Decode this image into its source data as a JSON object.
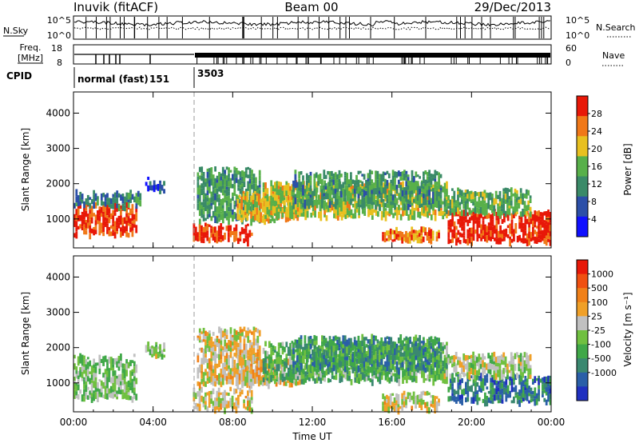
{
  "header": {
    "station": "Inuvik (fitACF)",
    "beam": "Beam 00",
    "date": "29/Dec/2013"
  },
  "noise_panel": {
    "left_label": "N.Sky",
    "right_label": "N.Search",
    "left_ticks": [
      "10^5",
      "10^0"
    ],
    "right_ticks": [
      "10^5",
      "10^0"
    ]
  },
  "freq_panel": {
    "left_label_line1": "Freq.",
    "left_label_line2": "[MHz]",
    "right_label": "Nave",
    "left_ticks": [
      "18",
      "8"
    ],
    "right_ticks": [
      "60",
      "0"
    ]
  },
  "cpid": {
    "label": "CPID",
    "modes": [
      {
        "name": "normal (fast)",
        "id": "151",
        "start_hour": 0,
        "end_hour": 6
      },
      {
        "name": "",
        "id": "3503",
        "start_hour": 6,
        "end_hour": 24
      }
    ]
  },
  "chart_data": [
    {
      "type": "heatmap",
      "name": "power",
      "xlabel": "",
      "ylabel": "Slant Range [km]",
      "xlim": [
        0,
        24
      ],
      "ylim": [
        180,
        4600
      ],
      "yticks": [
        "1000",
        "2000",
        "3000",
        "4000"
      ],
      "colorbar": {
        "label": "Power [dB]",
        "tick_labels": [
          "4",
          "8",
          "12",
          "16",
          "20",
          "24",
          "28"
        ],
        "range": [
          0,
          30
        ],
        "colors": [
          "#1010ff",
          "#2c4fa8",
          "#3a8a68",
          "#58b04a",
          "#e8c020",
          "#f07818",
          "#e81808"
        ]
      },
      "echo_regions": [
        {
          "t0": 0.0,
          "t1": 3.2,
          "r0": 600,
          "r1": 1500,
          "value": 26
        },
        {
          "t0": 0.0,
          "t1": 3.4,
          "r0": 1400,
          "r1": 1850,
          "value": 10
        },
        {
          "t0": 3.6,
          "t1": 4.6,
          "r0": 1800,
          "r1": 2200,
          "value": 6
        },
        {
          "t0": 6.0,
          "t1": 9.0,
          "r0": 400,
          "r1": 900,
          "value": 27
        },
        {
          "t0": 6.2,
          "t1": 9.4,
          "r0": 1000,
          "r1": 2500,
          "value": 12
        },
        {
          "t0": 8.2,
          "t1": 11.5,
          "r0": 1000,
          "r1": 1800,
          "value": 20
        },
        {
          "t0": 9.5,
          "t1": 18.8,
          "r0": 1100,
          "r1": 2100,
          "value": 18
        },
        {
          "t0": 11.0,
          "t1": 18.5,
          "r0": 1400,
          "r1": 2400,
          "value": 12
        },
        {
          "t0": 15.5,
          "t1": 18.4,
          "r0": 400,
          "r1": 800,
          "value": 24
        },
        {
          "t0": 18.8,
          "t1": 24.0,
          "r0": 400,
          "r1": 1300,
          "value": 28
        },
        {
          "t0": 18.6,
          "t1": 23.0,
          "r0": 1200,
          "r1": 1900,
          "value": 14
        }
      ]
    },
    {
      "type": "heatmap",
      "name": "velocity",
      "xlabel": "Time UT",
      "ylabel": "Slant Range [km]",
      "xlim": [
        0,
        24
      ],
      "ylim": [
        180,
        4600
      ],
      "xticks": [
        "00:00",
        "04:00",
        "08:00",
        "12:00",
        "16:00",
        "20:00",
        "00:00"
      ],
      "yticks": [
        "1000",
        "2000",
        "3000",
        "4000"
      ],
      "colorbar": {
        "label": "Velocity [m s⁻¹]",
        "tick_labels": [
          "1000",
          "500",
          "100",
          "25",
          "-25",
          "-100",
          "-500",
          "-1000"
        ],
        "range": [
          -1200,
          1200
        ],
        "colors": [
          "#2030c0",
          "#2a5fa8",
          "#3a8870",
          "#40a848",
          "#70c040",
          "#c0c0c0",
          "#f0a028",
          "#f08018",
          "#f05010",
          "#e81808"
        ]
      },
      "echo_regions": [
        {
          "t0": 0.0,
          "t1": 3.2,
          "r0": 600,
          "r1": 1850,
          "value": -120
        },
        {
          "t0": 3.6,
          "t1": 4.6,
          "r0": 1800,
          "r1": 2200,
          "value": -60
        },
        {
          "t0": 6.0,
          "t1": 9.0,
          "r0": 300,
          "r1": 900,
          "value": 140
        },
        {
          "t0": 6.2,
          "t1": 9.4,
          "r0": 1000,
          "r1": 2600,
          "value": 220
        },
        {
          "t0": 8.2,
          "t1": 11.5,
          "r0": 1000,
          "r1": 1800,
          "value": 300
        },
        {
          "t0": 9.5,
          "t1": 18.8,
          "r0": 1100,
          "r1": 2200,
          "value": -300
        },
        {
          "t0": 11.0,
          "t1": 18.5,
          "r0": 1400,
          "r1": 2400,
          "value": -500
        },
        {
          "t0": 15.5,
          "t1": 18.4,
          "r0": 300,
          "r1": 800,
          "value": 180
        },
        {
          "t0": 18.8,
          "t1": 24.0,
          "r0": 500,
          "r1": 1300,
          "value": -700
        },
        {
          "t0": 18.6,
          "t1": 23.0,
          "r0": 1200,
          "r1": 1900,
          "value": 20
        }
      ]
    }
  ]
}
